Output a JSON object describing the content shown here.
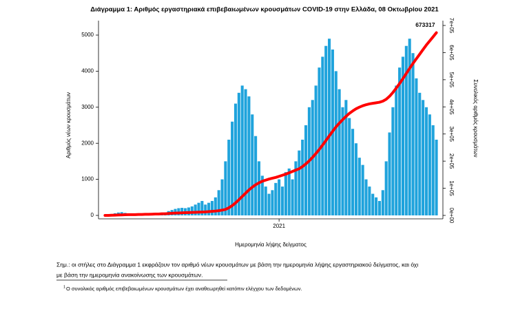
{
  "chart_data": {
    "type": "bar_line",
    "title": "Διάγραμμα 1: Αριθμός εργαστηριακά επιβεβαιωμένων κρουσμάτων COVID-19 στην Ελλάδα, 08 Οκτωβρίου 2021",
    "x_label": "Ημερομηνία λήψης δείγματος",
    "y_label": "Αριθμός νέων κρουσμάτων",
    "y2_label": "Συνολικός αριθμός κρουσμάτων",
    "categories": [
      null,
      null,
      null,
      null,
      null,
      null,
      null,
      null,
      null,
      null,
      null,
      null,
      null,
      null,
      null,
      null,
      null,
      null,
      null,
      null,
      null,
      null,
      null,
      null,
      null,
      null,
      null,
      null,
      null,
      null,
      null,
      null,
      null,
      null,
      null,
      null,
      null,
      null,
      null,
      null,
      null,
      null,
      null,
      null,
      null,
      null,
      null,
      null,
      null,
      null,
      null,
      null,
      "2021",
      null,
      null,
      null,
      null,
      null,
      null,
      null,
      null,
      null,
      null,
      null,
      null,
      null,
      null,
      null,
      null,
      null,
      null,
      null,
      null,
      null,
      null,
      null,
      null,
      null,
      null,
      null,
      null,
      null,
      null,
      null,
      null,
      null,
      null,
      null,
      null,
      null,
      null,
      null,
      null,
      null,
      null,
      null,
      null,
      null,
      null,
      null
    ],
    "ylim": [
      0,
      5267
    ],
    "yticks": [
      0,
      1000,
      2000,
      3000,
      4000,
      5000
    ],
    "y2lim": [
      0,
      700000
    ],
    "y2ticks": [
      {
        "value": 0,
        "label": "0e+00"
      },
      {
        "value": 100000,
        "label": "1e+05"
      },
      {
        "value": 200000,
        "label": "2e+05"
      },
      {
        "value": 300000,
        "label": "3e+05"
      },
      {
        "value": 400000,
        "label": "4e+05"
      },
      {
        "value": 500000,
        "label": "5e+05"
      },
      {
        "value": 600000,
        "label": "6e+05"
      },
      {
        "value": 700000,
        "label": "7e+05"
      }
    ],
    "series": [
      {
        "type": "bar",
        "color": "#1fa3dc",
        "values": [
          10,
          20,
          40,
          60,
          80,
          90,
          70,
          50,
          30,
          20,
          20,
          20,
          25,
          30,
          35,
          40,
          50,
          60,
          80,
          120,
          150,
          180,
          200,
          210,
          200,
          220,
          250,
          300,
          350,
          400,
          300,
          350,
          400,
          500,
          700,
          1000,
          1500,
          2100,
          2600,
          3100,
          3400,
          3600,
          3500,
          3300,
          2800,
          2200,
          1500,
          1100,
          800,
          600,
          700,
          900,
          1000,
          800,
          1200,
          1300,
          1000,
          1500,
          1800,
          2100,
          2500,
          3000,
          3200,
          3600,
          4100,
          4400,
          4700,
          4900,
          4600,
          4000,
          3500,
          3000,
          3200,
          2700,
          2400,
          2000,
          1600,
          1400,
          1000,
          800,
          600,
          500,
          400,
          700,
          1500,
          2300,
          3000,
          3600,
          4100,
          4400,
          4700,
          4900,
          4500,
          3800,
          3400,
          3200,
          3000,
          2800,
          2500,
          2100
        ]
      },
      {
        "type": "line",
        "axis": "y2",
        "color": "#ff0000",
        "values": [
          0,
          0,
          500,
          1000,
          1500,
          2000,
          2500,
          3000,
          3000,
          3000,
          3500,
          3500,
          4000,
          4000,
          4500,
          5000,
          5000,
          6000,
          6000,
          7000,
          8000,
          8500,
          9000,
          9500,
          10000,
          10500,
          11000,
          11500,
          12000,
          12500,
          13000,
          14000,
          15000,
          16000,
          17500,
          19500,
          22000,
          28000,
          36000,
          46000,
          58000,
          70000,
          82000,
          94000,
          104000,
          113000,
          120000,
          126000,
          130000,
          134000,
          137000,
          140000,
          144000,
          148000,
          152000,
          157000,
          162000,
          167000,
          172000,
          180000,
          190000,
          201000,
          214000,
          228000,
          243000,
          259000,
          276000,
          293000,
          310000,
          326000,
          340000,
          353000,
          365000,
          376000,
          385000,
          393000,
          399000,
          404000,
          408000,
          411000,
          413000,
          415000,
          417000,
          421000,
          428000,
          439000,
          453000,
          469000,
          486000,
          504000,
          523000,
          542000,
          560000,
          577000,
          594000,
          611000,
          628000,
          643000,
          658000,
          673317
        ]
      }
    ],
    "note": [
      "Σημ.: οι στήλες στο Διάγραμμα 1 εκφράζουν τον αριθμό νέων κρουσμάτων με βάση την ημερομηνία λήψης εργαστηριακού δείγματος, και όχι",
      "με βάση την ημερομηνία ανακοίνωσης των κρουσμάτων."
    ],
    "footnote_mark": "1",
    "footnote": "Ο συνολικός αριθμός επιβεβαιωμένων κρουσμάτων έχει αναθεωρηθεί κατόπιν ελέγχου των δεδομένων."
  }
}
